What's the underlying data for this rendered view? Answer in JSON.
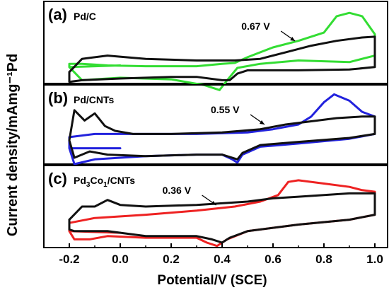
{
  "chart_data": [
    {
      "panel": "(a)",
      "type": "line",
      "label": "Pd/C",
      "annotation": "0.67 V",
      "annotation_x": 0.67,
      "series": [
        {
          "color": "#33dd33",
          "x": [
            0.0,
            -0.2,
            -0.2,
            -0.15,
            -0.05,
            0.1,
            0.3,
            0.4,
            0.45,
            0.5,
            0.6,
            0.7,
            0.8,
            0.85,
            0.9,
            0.95,
            1.0,
            1.0,
            0.9,
            0.7,
            0.55,
            0.46,
            0.42,
            0.39,
            0.33,
            0.2,
            0.0,
            -0.15,
            -0.2
          ],
          "y": [
            0.22,
            0.2,
            0.24,
            0.24,
            0.22,
            0.21,
            0.21,
            0.24,
            0.25,
            0.32,
            0.44,
            0.52,
            0.62,
            0.82,
            0.86,
            0.82,
            0.6,
            0.34,
            0.26,
            0.28,
            0.24,
            0.19,
            0.04,
            -0.08,
            -0.02,
            0.05,
            0.07,
            0.04,
            0.2
          ]
        },
        {
          "color": "#111111",
          "x": [
            -0.2,
            -0.15,
            -0.05,
            0.1,
            0.3,
            0.45,
            0.55,
            0.65,
            0.75,
            0.85,
            0.95,
            1.0,
            1.0,
            0.9,
            0.7,
            0.5,
            0.46,
            0.43,
            0.4,
            0.3,
            0.2,
            0.0,
            -0.15,
            -0.2,
            -0.2
          ],
          "y": [
            0.14,
            0.3,
            0.34,
            0.3,
            0.28,
            0.28,
            0.3,
            0.38,
            0.46,
            0.52,
            0.56,
            0.57,
            0.2,
            0.17,
            0.16,
            0.16,
            0.12,
            0.04,
            0.04,
            0.08,
            0.08,
            0.06,
            0.04,
            0.02,
            0.14
          ]
        }
      ]
    },
    {
      "panel": "(b)",
      "type": "line",
      "label": "Pd/CNTs",
      "annotation": "0.55 V",
      "annotation_x": 0.55,
      "series": [
        {
          "color": "#2222dd",
          "x": [
            0.0,
            -0.2,
            -0.2,
            -0.1,
            0.1,
            0.3,
            0.5,
            0.6,
            0.7,
            0.75,
            0.8,
            0.84,
            0.9,
            0.95,
            1.0,
            1.0,
            0.9,
            0.7,
            0.55,
            0.48,
            0.46,
            0.44,
            0.4,
            0.3,
            0.1,
            -0.1,
            -0.18,
            -0.2
          ],
          "y": [
            0.2,
            0.2,
            0.34,
            0.38,
            0.38,
            0.38,
            0.4,
            0.44,
            0.5,
            0.6,
            0.78,
            0.88,
            0.8,
            0.66,
            0.6,
            0.38,
            0.32,
            0.26,
            0.22,
            0.12,
            0.02,
            0.06,
            0.12,
            0.12,
            0.1,
            0.06,
            0.0,
            0.2
          ]
        },
        {
          "color": "#111111",
          "x": [
            -0.2,
            -0.18,
            -0.14,
            -0.1,
            -0.06,
            -0.02,
            0.05,
            0.2,
            0.4,
            0.55,
            0.65,
            0.75,
            0.85,
            0.95,
            1.0,
            1.0,
            0.9,
            0.7,
            0.55,
            0.48,
            0.46,
            0.44,
            0.4,
            0.3,
            0.1,
            -0.05,
            -0.12,
            -0.18,
            -0.2
          ],
          "y": [
            0.3,
            0.68,
            0.55,
            0.64,
            0.48,
            0.42,
            0.38,
            0.38,
            0.4,
            0.44,
            0.5,
            0.54,
            0.58,
            0.6,
            0.6,
            0.38,
            0.33,
            0.28,
            0.24,
            0.14,
            0.06,
            0.08,
            0.12,
            0.12,
            0.1,
            0.12,
            0.16,
            0.08,
            0.3
          ]
        }
      ]
    },
    {
      "panel": "(c)",
      "type": "line",
      "label": "Pd3Co1/CNTs",
      "annotation": "0.36 V",
      "annotation_x": 0.36,
      "series": [
        {
          "color": "#ee2222",
          "x": [
            0.0,
            -0.2,
            -0.2,
            -0.1,
            0.1,
            0.3,
            0.45,
            0.55,
            0.62,
            0.66,
            0.7,
            0.8,
            0.9,
            0.95,
            1.0,
            1.0,
            0.9,
            0.7,
            0.5,
            0.42,
            0.38,
            0.34,
            0.3,
            0.1,
            -0.05,
            -0.12,
            -0.18,
            -0.2
          ],
          "y": [
            0.18,
            0.2,
            0.3,
            0.36,
            0.4,
            0.45,
            0.5,
            0.56,
            0.64,
            0.8,
            0.82,
            0.78,
            0.74,
            0.7,
            0.68,
            0.4,
            0.34,
            0.28,
            0.2,
            0.1,
            0.02,
            0.06,
            0.12,
            0.12,
            0.14,
            0.1,
            0.1,
            0.2
          ]
        },
        {
          "color": "#111111",
          "x": [
            -0.2,
            -0.15,
            -0.1,
            -0.05,
            0.0,
            0.1,
            0.3,
            0.5,
            0.6,
            0.7,
            0.8,
            0.9,
            1.0,
            1.0,
            0.9,
            0.7,
            0.5,
            0.43,
            0.4,
            0.36,
            0.3,
            0.1,
            -0.05,
            -0.12,
            -0.18,
            -0.2,
            -0.2
          ],
          "y": [
            0.34,
            0.5,
            0.5,
            0.58,
            0.52,
            0.5,
            0.52,
            0.56,
            0.6,
            0.62,
            0.64,
            0.66,
            0.66,
            0.4,
            0.34,
            0.28,
            0.2,
            0.12,
            0.06,
            0.1,
            0.14,
            0.14,
            0.2,
            0.2,
            0.2,
            0.22,
            0.34
          ]
        }
      ]
    }
  ],
  "axes": {
    "xlabel": "Potential/V (SCE)",
    "ylabel": "Current density/mAmg⁻¹Pd",
    "xlim": [
      -0.3,
      1.05
    ],
    "xticks": [
      -0.2,
      0.0,
      0.2,
      0.4,
      0.6,
      0.8,
      1.0
    ],
    "xtick_labels": [
      "-0.2",
      "0.0",
      "0.2",
      "0.4",
      "0.6",
      "0.8",
      "1.0"
    ]
  }
}
